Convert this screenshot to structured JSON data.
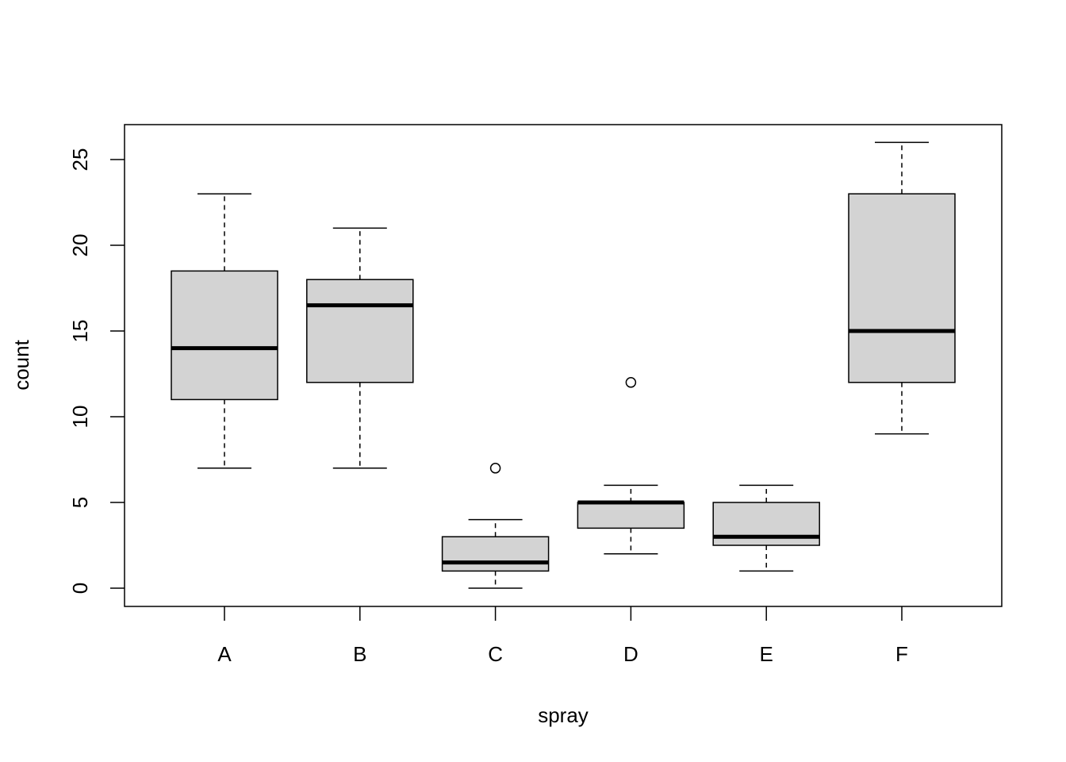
{
  "chart_data": {
    "type": "boxplot",
    "title": "",
    "xlabel": "spray",
    "ylabel": "count",
    "categories": [
      "A",
      "B",
      "C",
      "D",
      "E",
      "F"
    ],
    "ylim": [
      -1,
      27
    ],
    "yticks": [
      0,
      5,
      10,
      15,
      20,
      25
    ],
    "grid": false,
    "legend": "none",
    "box_fill": "#d3d3d3",
    "boxes": [
      {
        "category": "A",
        "whisker_low": 7,
        "q1": 11,
        "median": 14,
        "q3": 18.5,
        "whisker_high": 23,
        "outliers": []
      },
      {
        "category": "B",
        "whisker_low": 7,
        "q1": 12,
        "median": 16.5,
        "q3": 18,
        "whisker_high": 21,
        "outliers": []
      },
      {
        "category": "C",
        "whisker_low": 0,
        "q1": 1,
        "median": 1.5,
        "q3": 3,
        "whisker_high": 4,
        "outliers": [
          7
        ]
      },
      {
        "category": "D",
        "whisker_low": 2,
        "q1": 3.5,
        "median": 5,
        "q3": 5,
        "whisker_high": 6,
        "outliers": [
          12
        ]
      },
      {
        "category": "E",
        "whisker_low": 1,
        "q1": 2.5,
        "median": 3,
        "q3": 5,
        "whisker_high": 6,
        "outliers": []
      },
      {
        "category": "F",
        "whisker_low": 9,
        "q1": 12,
        "median": 15,
        "q3": 23,
        "whisker_high": 26,
        "outliers": []
      }
    ]
  }
}
